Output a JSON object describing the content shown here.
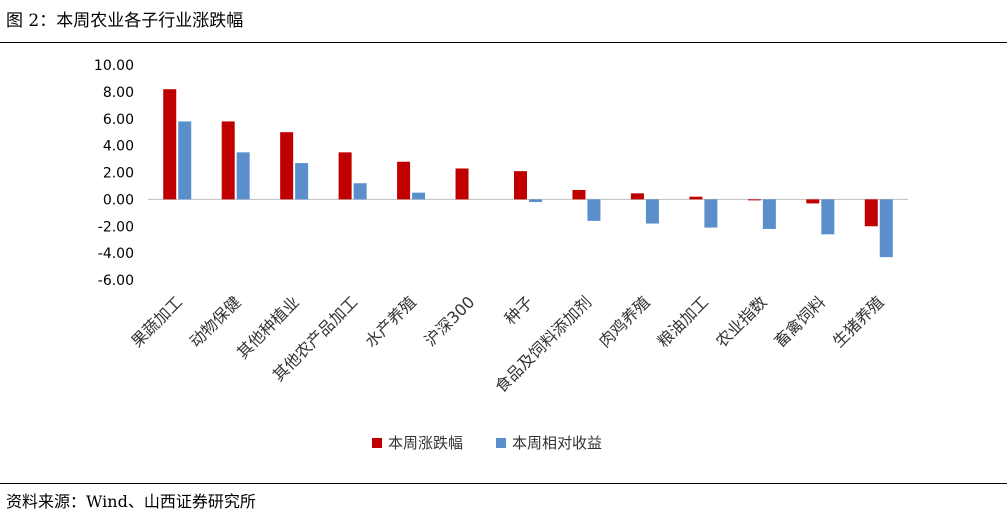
{
  "figure_title": "图 2：本周农业各子行业涨跌幅",
  "source_note": "资料来源：Wind、山西证券研究所",
  "colors": {
    "series1": "#C00000",
    "series2": "#5B8FCB",
    "axis": "#BFBFBF"
  },
  "chart_data": {
    "type": "bar",
    "title": "",
    "xlabel": "",
    "ylabel": "",
    "ylim": [
      -6,
      10
    ],
    "yticks": [
      10,
      8,
      6,
      4,
      2,
      0,
      -2,
      -4,
      -6
    ],
    "ytick_labels": [
      "10.00",
      "8.00",
      "6.00",
      "4.00",
      "2.00",
      "0.00",
      "-2.00",
      "-4.00",
      "-6.00"
    ],
    "grid": false,
    "legend_position": "bottom",
    "categories": [
      "果蔬加工",
      "动物保健",
      "其他种植业",
      "其他农产品加工",
      "水产养殖",
      "沪深300",
      "种子",
      "食品及饲料添加剂",
      "肉鸡养殖",
      "粮油加工",
      "农业指数",
      "畜禽饲料",
      "生猪养殖"
    ],
    "series": [
      {
        "name": "本周涨跌幅",
        "values": [
          8.2,
          5.8,
          5.0,
          3.5,
          2.8,
          2.3,
          2.1,
          0.7,
          0.45,
          0.2,
          0.0,
          -0.3,
          -2.0
        ]
      },
      {
        "name": "本周相对收益",
        "values": [
          5.8,
          3.5,
          2.7,
          1.2,
          0.5,
          null,
          -0.2,
          -1.6,
          -1.8,
          -2.1,
          -2.2,
          -2.6,
          -4.3
        ]
      }
    ]
  }
}
